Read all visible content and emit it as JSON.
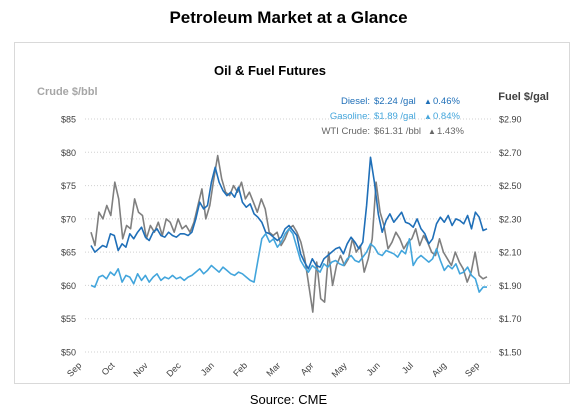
{
  "page": {
    "title": "Petroleum Market at a Glance",
    "source": "Source: CME"
  },
  "chart_data": {
    "type": "line",
    "title": "Oil & Fuel Futures",
    "ylabel_left": "Crude $/bbl",
    "ylabel_right": "Fuel $/gal",
    "left_axis": {
      "min": 50,
      "max": 85,
      "ticks": [
        "$85",
        "$80",
        "$75",
        "$70",
        "$65",
        "$60",
        "$55",
        "$50"
      ]
    },
    "right_axis": {
      "min": 1.5,
      "max": 2.9,
      "ticks": [
        "$2.90",
        "$2.70",
        "$2.50",
        "$2.30",
        "$2.10",
        "$1.90",
        "$1.70",
        "$1.50"
      ]
    },
    "x_ticks": [
      "Sep",
      "Oct",
      "Nov",
      "Dec",
      "Jan",
      "Feb",
      "Mar",
      "Apr",
      "May",
      "Jun",
      "Jul",
      "Aug",
      "Sep"
    ],
    "grid": "horizontal dotted",
    "legend": [
      {
        "label": "Diesel:",
        "value": "$2.24 /gal",
        "change": "0.46%",
        "arrow": "▲",
        "color": "#1f6fb8"
      },
      {
        "label": "Gasoline:",
        "value": "$1.89 /gal",
        "change": "0.84%",
        "arrow": "▲",
        "color": "#42a5dc"
      },
      {
        "label": "WTI Crude:",
        "value": "$61.31 /bbl",
        "change": "1.43%",
        "arrow": "▲",
        "color": "#666666"
      }
    ],
    "series": [
      {
        "key": "wti",
        "axis": "left",
        "color": "#7f7f7f",
        "values": [
          68,
          66,
          71,
          70,
          72,
          70.5,
          75.5,
          73,
          67,
          69,
          68.5,
          73,
          71,
          70.5,
          67,
          69,
          68,
          69.5,
          67.5,
          70,
          69.5,
          68,
          70,
          68.5,
          69,
          68,
          69.5,
          72,
          74.5,
          70,
          72,
          76,
          79.5,
          76,
          74,
          73.5,
          75,
          74,
          75.5,
          73,
          74,
          72.5,
          71,
          73,
          71.5,
          68,
          67.5,
          68,
          66,
          67,
          68.5,
          69,
          68,
          66.5,
          64,
          60,
          56,
          63.5,
          58,
          57.5,
          65,
          60,
          63,
          64.5,
          63,
          64,
          67,
          65,
          66,
          62,
          64,
          67,
          75.5,
          71,
          69,
          65.5,
          66.5,
          68,
          67,
          65.5,
          66.5,
          67,
          68.5,
          66,
          67.5,
          66.5,
          65,
          64.5,
          67,
          65,
          64,
          63,
          65,
          63.5,
          62.5,
          60.5,
          62,
          65,
          61.5,
          61,
          61.3
        ]
      },
      {
        "key": "diesel",
        "axis": "right",
        "color": "#1f6fb8",
        "values": [
          2.14,
          2.1,
          2.12,
          2.14,
          2.13,
          2.21,
          2.2,
          2.11,
          2.15,
          2.13,
          2.21,
          2.18,
          2.22,
          2.25,
          2.19,
          2.17,
          2.22,
          2.24,
          2.2,
          2.19,
          2.22,
          2.2,
          2.19,
          2.21,
          2.21,
          2.2,
          2.22,
          2.3,
          2.4,
          2.36,
          2.38,
          2.52,
          2.61,
          2.52,
          2.47,
          2.44,
          2.46,
          2.43,
          2.49,
          2.4,
          2.37,
          2.39,
          2.33,
          2.31,
          2.28,
          2.22,
          2.21,
          2.19,
          2.17,
          2.19,
          2.24,
          2.26,
          2.23,
          2.2,
          2.09,
          2.04,
          2.0,
          2.06,
          2.02,
          2.01,
          2.06,
          2.08,
          2.1,
          2.12,
          2.13,
          2.09,
          2.15,
          2.19,
          2.16,
          2.12,
          2.16,
          2.38,
          2.67,
          2.52,
          2.33,
          2.22,
          2.29,
          2.33,
          2.28,
          2.31,
          2.34,
          2.28,
          2.27,
          2.25,
          2.3,
          2.24,
          2.21,
          2.15,
          2.18,
          2.27,
          2.31,
          2.28,
          2.32,
          2.26,
          2.3,
          2.29,
          2.27,
          2.32,
          2.24,
          2.34,
          2.31,
          2.23,
          2.24
        ]
      },
      {
        "key": "gasoline",
        "axis": "right",
        "color": "#42a5dc",
        "values": [
          1.9,
          1.89,
          1.95,
          1.96,
          1.94,
          1.98,
          1.96,
          2.0,
          1.92,
          1.96,
          1.95,
          1.91,
          1.97,
          1.93,
          1.96,
          1.92,
          1.95,
          1.97,
          1.93,
          1.95,
          1.94,
          1.96,
          1.94,
          1.95,
          1.93,
          1.95,
          1.96,
          1.98,
          2.0,
          1.97,
          1.99,
          2.02,
          2.0,
          1.98,
          2.01,
          1.99,
          1.97,
          1.96,
          1.98,
          1.97,
          1.95,
          1.93,
          1.92,
          2.05,
          2.18,
          2.21,
          2.16,
          2.18,
          2.13,
          2.16,
          2.21,
          2.24,
          2.21,
          2.13,
          2.05,
          2.01,
          1.98,
          2.02,
          2.0,
          1.98,
          2.03,
          2.01,
          2.04,
          2.05,
          2.03,
          2.02,
          2.06,
          2.08,
          2.05,
          2.04,
          2.07,
          2.1,
          2.15,
          2.13,
          2.09,
          2.08,
          2.11,
          2.1,
          2.09,
          2.07,
          2.11,
          2.09,
          2.18,
          2.02,
          2.06,
          2.08,
          2.06,
          2.04,
          2.06,
          2.12,
          2.05,
          1.99,
          2.02,
          2.0,
          2.03,
          1.97,
          1.98,
          2.01,
          1.96,
          1.94,
          1.86,
          1.89,
          1.89
        ]
      }
    ]
  }
}
